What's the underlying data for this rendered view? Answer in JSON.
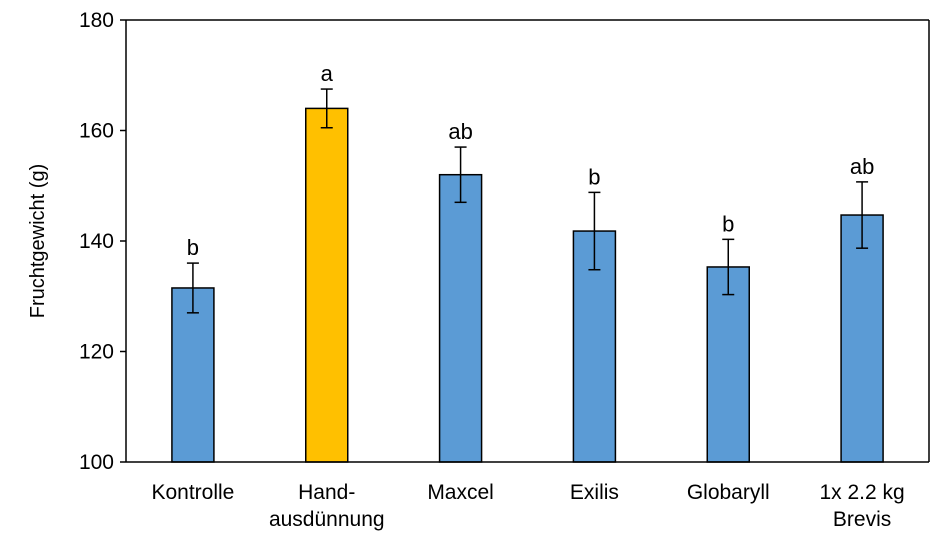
{
  "chart_data": {
    "type": "bar",
    "ylabel": "Fruchtgewicht (g)",
    "xlabel": "",
    "ylim": [
      100,
      180
    ],
    "yticks": [
      100,
      120,
      140,
      160,
      180
    ],
    "grid": false,
    "categories": [
      [
        "Kontrolle"
      ],
      [
        "Hand-",
        "ausdünnung"
      ],
      [
        "Maxcel"
      ],
      [
        "Exilis"
      ],
      [
        "Globaryll"
      ],
      [
        "1x 2.2 kg",
        "Brevis"
      ]
    ],
    "values": [
      131.5,
      164,
      152,
      141.8,
      135.3,
      144.7
    ],
    "errors": [
      4.5,
      3.5,
      5.0,
      7.0,
      5.0,
      6.0
    ],
    "significance": [
      "b",
      "a",
      "ab",
      "b",
      "b",
      "ab"
    ],
    "colors": [
      "#5b9bd5",
      "#ffc000",
      "#5b9bd5",
      "#5b9bd5",
      "#5b9bd5",
      "#5b9bd5"
    ]
  }
}
